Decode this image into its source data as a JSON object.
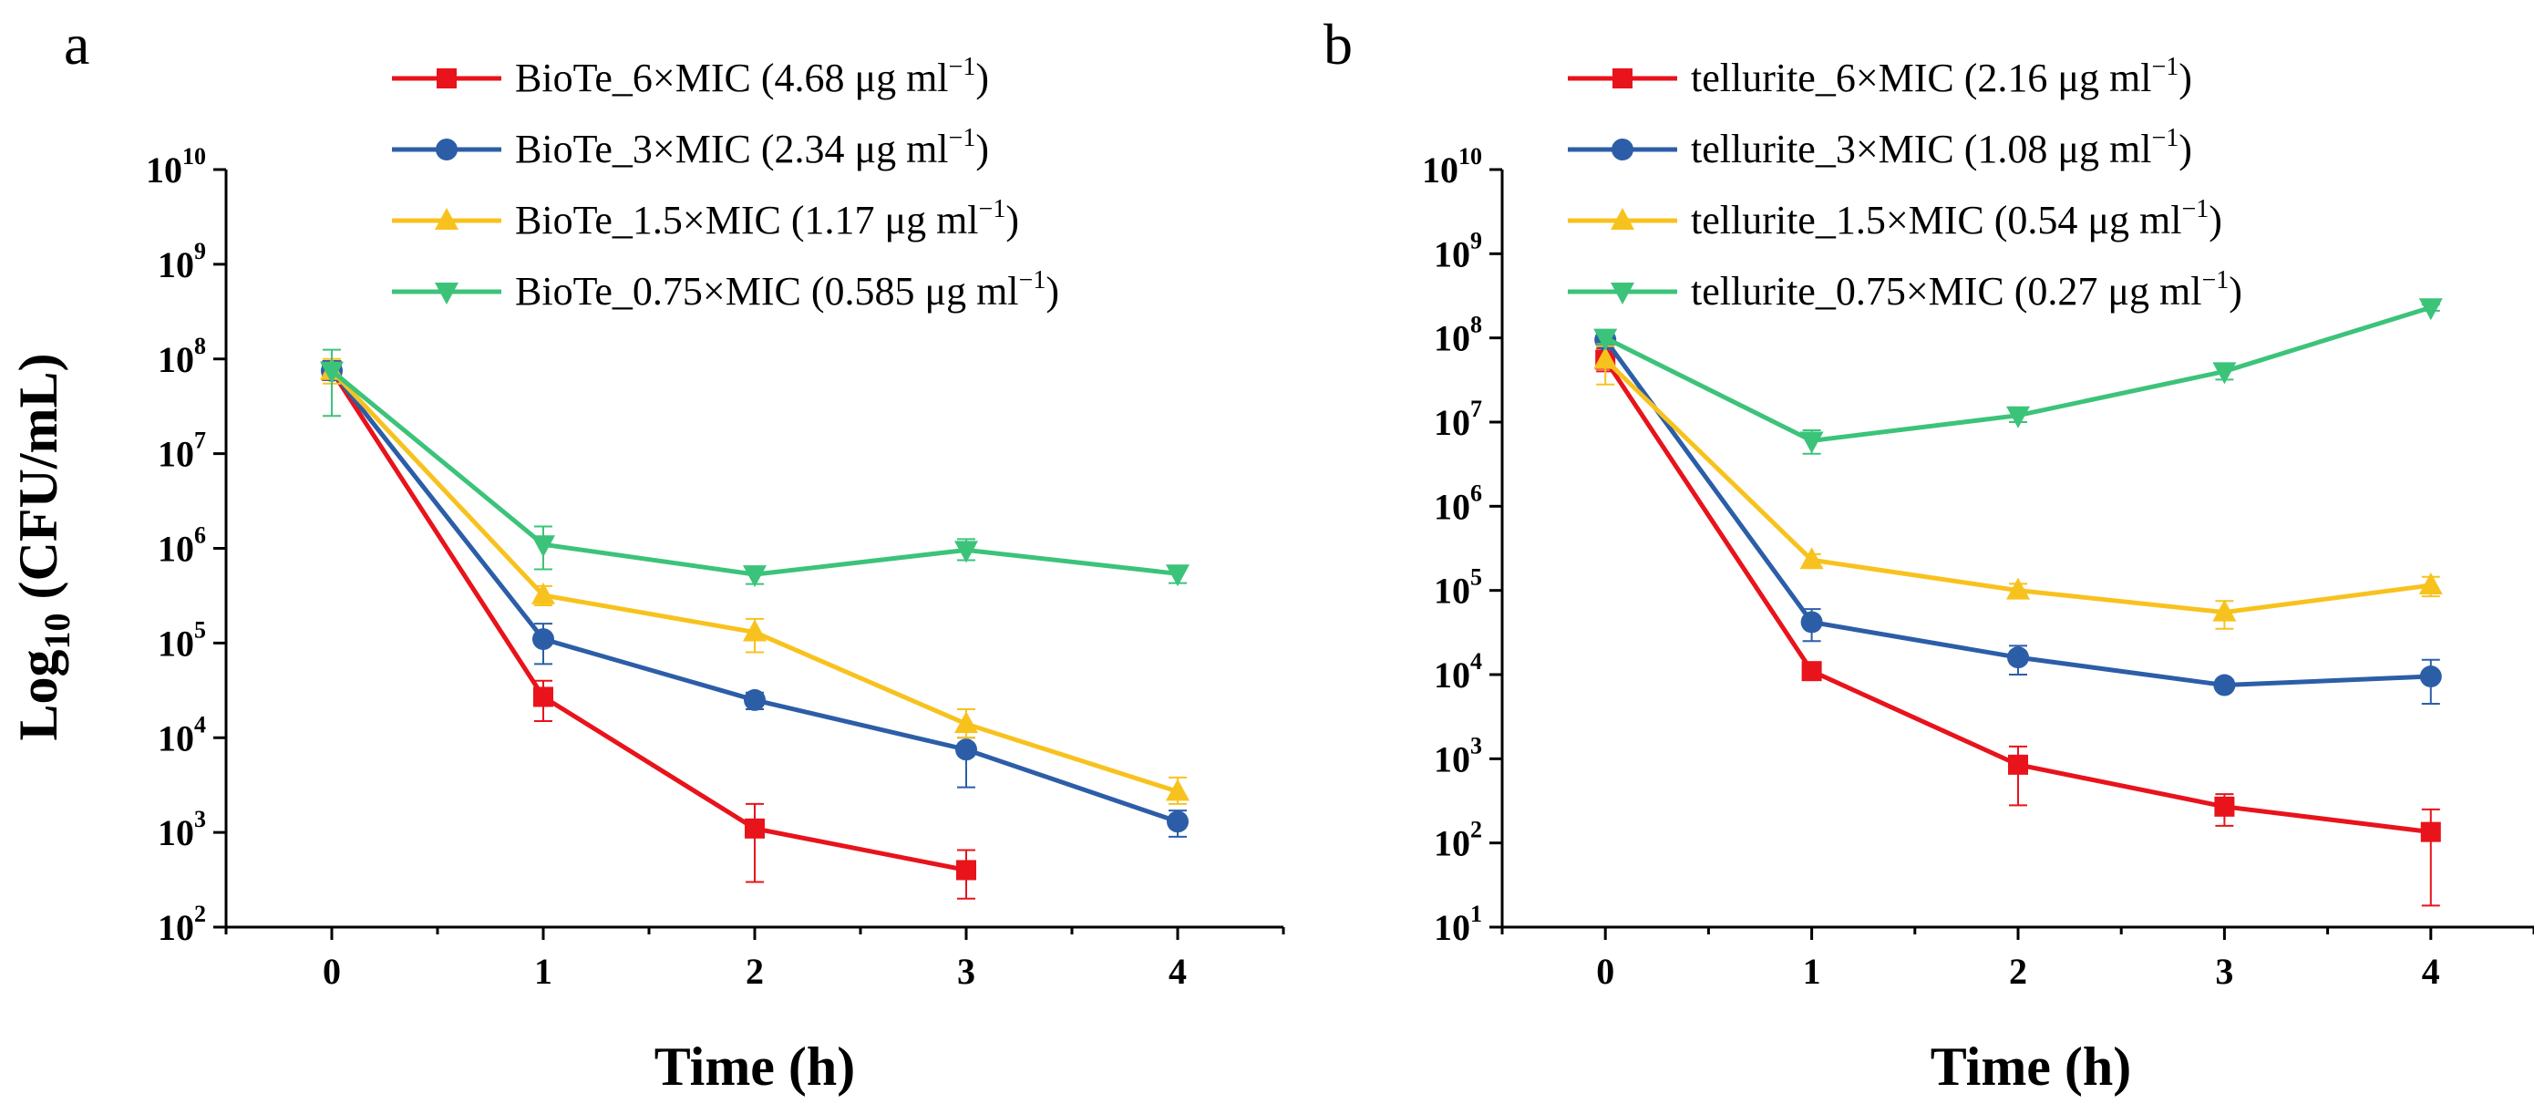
{
  "colors": {
    "red": "#e8131b",
    "blue": "#2c5ea8",
    "yellow": "#f8c21e",
    "green": "#3cc37a"
  },
  "chart_data": [
    {
      "type": "line",
      "panel_label": "a",
      "title": "",
      "xlabel": "Time (h)",
      "ylabel": "Log10 (CFU/mL)",
      "ylabel_parts": {
        "main": "Log",
        "sub": "10",
        "rest": " (CFU/mL)"
      },
      "y_scale": "log",
      "xlim": [
        -0.5,
        4.5
      ],
      "ylim": [
        100,
        10000000000
      ],
      "x_ticks": [
        "0",
        "1",
        "2",
        "3",
        "4"
      ],
      "y_ticks": [
        {
          "base": "10",
          "exp": "2"
        },
        {
          "base": "10",
          "exp": "3"
        },
        {
          "base": "10",
          "exp": "4"
        },
        {
          "base": "10",
          "exp": "5"
        },
        {
          "base": "10",
          "exp": "6"
        },
        {
          "base": "10",
          "exp": "7"
        },
        {
          "base": "10",
          "exp": "8"
        },
        {
          "base": "10",
          "exp": "9"
        },
        {
          "base": "10",
          "exp": "10"
        }
      ],
      "legend_position": "top",
      "series": [
        {
          "name": "BioTe_6×MIC (4.68 μg ml",
          "unit_sup": "−1",
          "label_tail": ")",
          "color": "red",
          "marker": "square",
          "x": [
            0,
            1,
            2,
            3
          ],
          "values": [
            75000000,
            27000,
            1100,
            400
          ],
          "err_low": [
            60000000,
            15000,
            300,
            200
          ],
          "err_high": [
            95000000,
            40000,
            2000,
            650
          ]
        },
        {
          "name": "BioTe_3×MIC (2.34 μg ml",
          "unit_sup": "−1",
          "label_tail": ")",
          "color": "blue",
          "marker": "circle",
          "x": [
            0,
            1,
            2,
            3,
            4
          ],
          "values": [
            75000000,
            110000,
            25000,
            7500,
            1300
          ],
          "err_low": [
            60000000,
            60000,
            20000,
            3000,
            900
          ],
          "err_high": [
            95000000,
            160000,
            30000,
            10000,
            1700
          ]
        },
        {
          "name": "BioTe_1.5×MIC (1.17 μg ml",
          "unit_sup": "−1",
          "label_tail": ")",
          "color": "yellow",
          "marker": "triangle-up",
          "x": [
            0,
            1,
            2,
            3,
            4
          ],
          "values": [
            75000000,
            320000,
            130000,
            14000,
            2700
          ],
          "err_low": [
            55000000,
            250000,
            80000,
            10000,
            2000
          ],
          "err_high": [
            100000000,
            400000,
            180000,
            20000,
            3800
          ]
        },
        {
          "name": "BioTe_0.75×MIC (0.585 μg ml",
          "unit_sup": "−1",
          "label_tail": ")",
          "color": "green",
          "marker": "triangle-down",
          "x": [
            0,
            1,
            2,
            3,
            4
          ],
          "values": [
            75000000,
            1100000,
            530000,
            960000,
            540000
          ],
          "err_low": [
            25000000,
            600000,
            420000,
            750000,
            430000
          ],
          "err_high": [
            125000000,
            1700000,
            640000,
            1250000,
            650000
          ]
        }
      ]
    },
    {
      "type": "line",
      "panel_label": "b",
      "title": "",
      "xlabel": "Time (h)",
      "ylabel": "",
      "y_scale": "log",
      "xlim": [
        -0.5,
        4.5
      ],
      "ylim": [
        10,
        10000000000
      ],
      "x_ticks": [
        "0",
        "1",
        "2",
        "3",
        "4"
      ],
      "y_ticks": [
        {
          "base": "10",
          "exp": "1"
        },
        {
          "base": "10",
          "exp": "2"
        },
        {
          "base": "10",
          "exp": "3"
        },
        {
          "base": "10",
          "exp": "4"
        },
        {
          "base": "10",
          "exp": "5"
        },
        {
          "base": "10",
          "exp": "6"
        },
        {
          "base": "10",
          "exp": "7"
        },
        {
          "base": "10",
          "exp": "8"
        },
        {
          "base": "10",
          "exp": "9"
        },
        {
          "base": "10",
          "exp": "10"
        }
      ],
      "legend_position": "top",
      "series": [
        {
          "name": "tellurite_6×MIC (2.16 μg ml",
          "unit_sup": "−1",
          "label_tail": ")",
          "color": "red",
          "marker": "square",
          "x": [
            0,
            1,
            2,
            3,
            4
          ],
          "values": [
            55000000,
            11000,
            850,
            270,
            135
          ],
          "err_low": [
            40000000,
            9000,
            280,
            160,
            18
          ],
          "err_high": [
            75000000,
            13000,
            1400,
            380,
            250
          ]
        },
        {
          "name": "tellurite_3×MIC (1.08 μg ml",
          "unit_sup": "−1",
          "label_tail": ")",
          "color": "blue",
          "marker": "circle",
          "x": [
            0,
            1,
            2,
            3,
            4
          ],
          "values": [
            95000000,
            42000,
            16000,
            7500,
            9500
          ],
          "err_low": [
            80000000,
            25000,
            10000,
            6500,
            4500
          ],
          "err_high": [
            110000000,
            60000,
            22000,
            8500,
            15000
          ]
        },
        {
          "name": "tellurite_1.5×MIC (0.54 μg ml",
          "unit_sup": "−1",
          "label_tail": ")",
          "color": "yellow",
          "marker": "triangle-up",
          "x": [
            0,
            1,
            2,
            3,
            4
          ],
          "values": [
            55000000,
            230000,
            100000,
            55000,
            115000
          ],
          "err_low": [
            28000000,
            190000,
            85000,
            35000,
            85000
          ],
          "err_high": [
            80000000,
            270000,
            120000,
            75000,
            145000
          ]
        },
        {
          "name": "tellurite_0.75×MIC (0.27 μg ml",
          "unit_sup": "−1",
          "label_tail": ")",
          "color": "green",
          "marker": "triangle-down",
          "x": [
            0,
            1,
            2,
            3,
            4
          ],
          "values": [
            100000000,
            6000000,
            12000000,
            40000000,
            230000000
          ],
          "err_low": [
            85000000,
            4200000,
            10000000,
            32000000,
            210000000
          ],
          "err_high": [
            115000000,
            8000000,
            14000000,
            48000000,
            250000000
          ]
        }
      ]
    }
  ]
}
